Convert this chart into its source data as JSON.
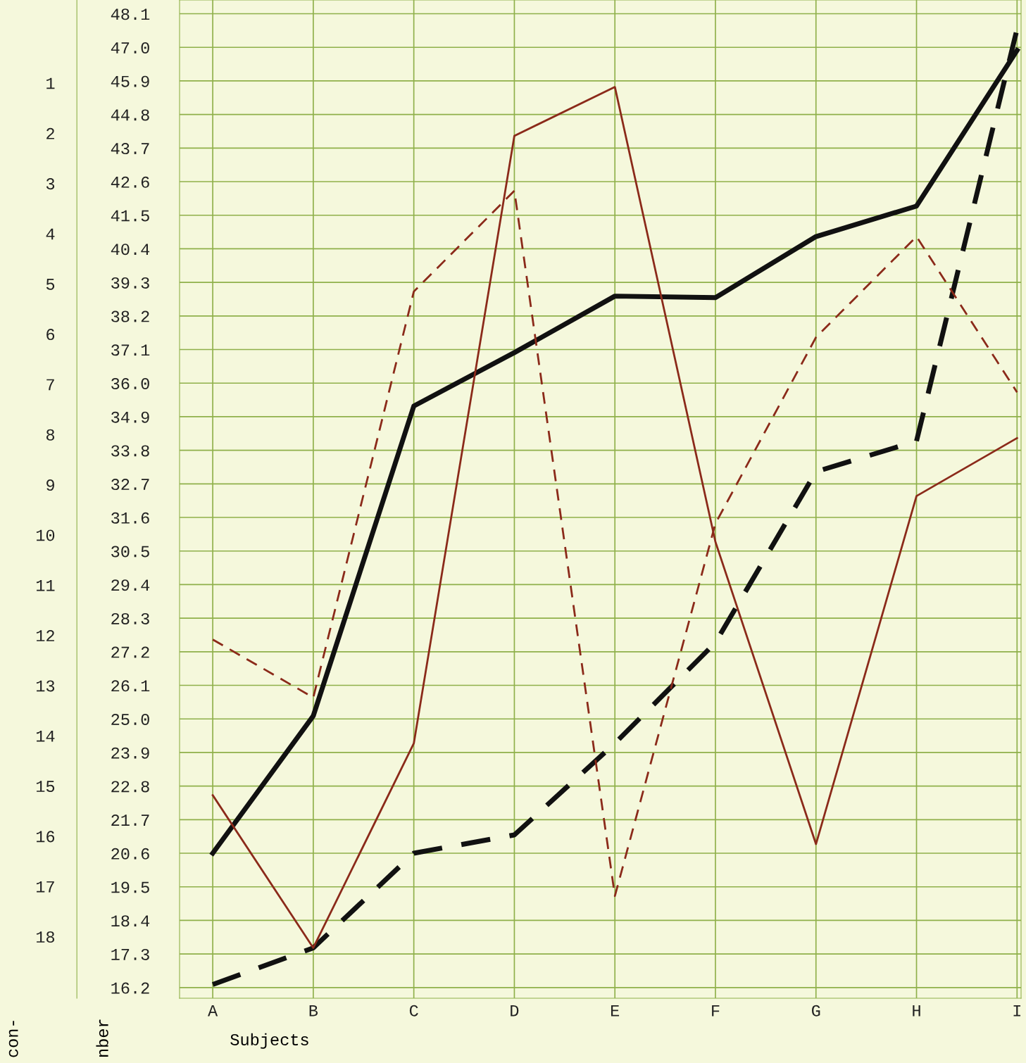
{
  "chart_data": {
    "type": "line",
    "xlabel": "Subjects",
    "ylabel": "nber",
    "y2label": "con-",
    "categories": [
      "A",
      "B",
      "C",
      "D",
      "E",
      "F",
      "G",
      "H",
      "I"
    ],
    "series": [
      {
        "color": "#111111",
        "line_style": "solid",
        "values": [
          20.6,
          25.1,
          35.25,
          37.0,
          38.85,
          38.8,
          40.8,
          41.8,
          46.9
        ]
      },
      {
        "color": "#111111",
        "line_style": "dashed",
        "values": [
          16.3,
          17.5,
          20.6,
          21.2,
          24.2,
          27.5,
          33.1,
          34.1,
          47.6
        ]
      },
      {
        "color": "#8b2a1a",
        "line_style": "solid",
        "values": [
          22.5,
          17.5,
          24.2,
          44.1,
          45.7,
          30.8,
          20.9,
          32.3,
          34.2
        ]
      },
      {
        "color": "#8b2a1a",
        "line_style": "dashed",
        "values": [
          27.6,
          25.7,
          39.0,
          42.3,
          19.2,
          31.4,
          37.5,
          40.8,
          35.7
        ]
      }
    ],
    "ylim": [
      15.85,
      48.55
    ],
    "yticks": [
      16.2,
      17.3,
      18.4,
      19.5,
      20.6,
      21.7,
      22.8,
      23.9,
      {
        "value": 25.0,
        "label": "25.0"
      },
      26.1,
      27.2,
      28.3,
      29.4,
      30.5,
      31.6,
      32.7,
      33.8,
      34.9,
      {
        "value": 36.0,
        "label": "36.0"
      },
      37.1,
      38.2,
      39.3,
      40.4,
      41.5,
      42.6,
      43.7,
      44.8,
      45.9,
      {
        "value": 47.0,
        "label": "47.0"
      },
      48.1
    ],
    "y2lim": [
      19.23,
      -0.65
    ],
    "y2ticks": [
      1,
      2,
      3,
      4,
      5,
      6,
      7,
      8,
      9,
      10,
      11,
      12,
      13,
      14,
      15,
      16,
      17,
      18
    ],
    "grid": true,
    "legend": false,
    "marker": "none"
  }
}
